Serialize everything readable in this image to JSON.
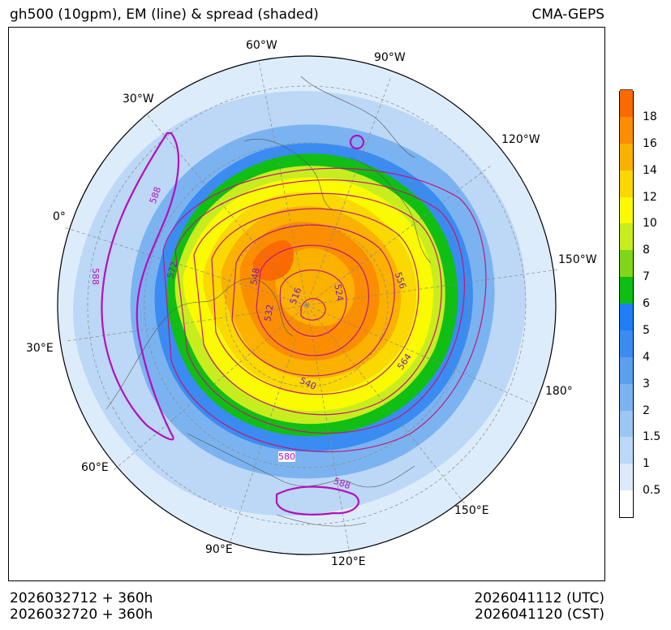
{
  "header": {
    "title": "gh500 (10gpm), EM (line) & spread (shaded)",
    "model": "CMA-GEPS"
  },
  "footer": {
    "init_utc": "2026032712 + 360h",
    "init_cst": "2026032720 + 360h",
    "valid_utc": "2026041112 (UTC)",
    "valid_cst": "2026041120 (CST)"
  },
  "longitude_labels": [
    "60°W",
    "90°W",
    "30°W",
    "120°W",
    "0°",
    "150°W",
    "30°E",
    "180°",
    "60°E",
    "150°E",
    "90°E",
    "120°E"
  ],
  "contour_labels": [
    "588",
    "572",
    "548",
    "516",
    "524",
    "532",
    "556",
    "564",
    "540",
    "580",
    "588",
    "588"
  ],
  "colorbar": {
    "ticks": [
      "0.5",
      "1",
      "1.5",
      "2",
      "3",
      "4",
      "5",
      "6",
      "7",
      "8",
      "10",
      "12",
      "14",
      "16",
      "18"
    ],
    "colors": [
      "#ffffff",
      "#dbe9fa",
      "#bcd8f6",
      "#9cc6f3",
      "#7bb3f0",
      "#5b9fee",
      "#3a8cf2",
      "#1f7ef6",
      "#0fbe14",
      "#7fd61a",
      "#c8ed1f",
      "#fafa00",
      "#fad800",
      "#fab100",
      "#fa8e00",
      "#fa6a00"
    ]
  }
}
